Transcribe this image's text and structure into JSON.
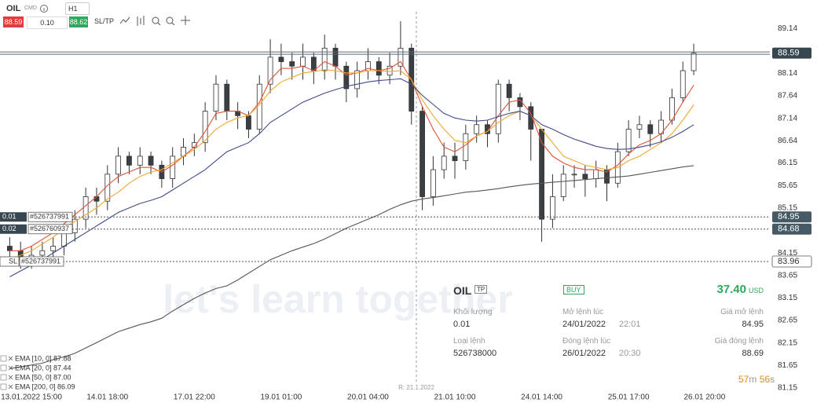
{
  "toolbar": {
    "symbol": "OIL",
    "market": "CMD",
    "timeframe": "H1",
    "bid": "88.59",
    "lot": "0.10",
    "ask": "88.62",
    "sltp": "SL/TP"
  },
  "chart_data": {
    "type": "candlestick",
    "categories": [
      null,
      null,
      "13.01.2022 15:00",
      null,
      null,
      null,
      null,
      null,
      null,
      "14.01 18:00",
      null,
      null,
      null,
      null,
      null,
      null,
      null,
      "17.01 22:00",
      null,
      null,
      null,
      null,
      null,
      null,
      null,
      "19.01 01:00",
      null,
      null,
      null,
      null,
      null,
      null,
      null,
      "20.01 04:00",
      null,
      null,
      null,
      null,
      null,
      null,
      null,
      "21.01 10:00",
      null,
      null,
      null,
      null,
      null,
      null,
      null,
      "24.01 14:00",
      null,
      null,
      null,
      null,
      null,
      null,
      null,
      "25.01 17:00",
      null,
      null,
      null,
      null,
      null,
      null,
      "26.01 20:00"
    ],
    "open": [
      84.3,
      84.2,
      84.0,
      84.1,
      84.2,
      84.3,
      84.6,
      84.9,
      85.4,
      85.3,
      85.9,
      86.3,
      86.1,
      86.3,
      86.1,
      85.8,
      86.3,
      86.5,
      86.6,
      87.3,
      87.9,
      87.3,
      87.2,
      86.9,
      87.9,
      88.5,
      88.4,
      88.3,
      88.5,
      88.2,
      88.7,
      88.3,
      87.8,
      88.2,
      88.4,
      88.1,
      88.3,
      88.7,
      87.3,
      85.4,
      86.0,
      86.3,
      86.2,
      86.8,
      87.0,
      86.8,
      87.9,
      87.6,
      87.4,
      86.9,
      84.9,
      85.4,
      85.9,
      85.9,
      85.8,
      86.0,
      85.7,
      86.4,
      86.9,
      87.0,
      86.8,
      87.1,
      87.6,
      88.2,
      null
    ],
    "high": [
      84.5,
      84.4,
      84.3,
      84.4,
      84.5,
      84.8,
      85.1,
      85.6,
      85.6,
      86.1,
      86.5,
      86.4,
      86.5,
      86.4,
      86.2,
      86.5,
      86.7,
      86.8,
      87.5,
      88.1,
      88.0,
      87.5,
      87.3,
      88.1,
      88.9,
      88.8,
      88.6,
      88.8,
      88.6,
      89.0,
      88.8,
      88.4,
      88.4,
      88.7,
      88.5,
      88.6,
      89.3,
      88.8,
      87.4,
      86.3,
      86.6,
      86.6,
      87.0,
      87.2,
      87.1,
      88.0,
      88.0,
      87.7,
      87.5,
      86.9,
      85.9,
      86.1,
      86.1,
      86.1,
      86.2,
      86.1,
      86.6,
      87.1,
      87.2,
      87.1,
      87.3,
      87.8,
      88.4,
      88.8,
      null
    ],
    "low": [
      83.9,
      83.8,
      83.8,
      83.9,
      84.0,
      84.1,
      84.4,
      84.7,
      85.0,
      85.1,
      85.7,
      85.9,
      85.9,
      85.9,
      85.6,
      85.6,
      86.1,
      86.3,
      86.4,
      87.1,
      87.1,
      86.9,
      86.7,
      86.8,
      87.7,
      88.1,
      88.0,
      88.0,
      87.9,
      88.0,
      88.0,
      87.5,
      87.6,
      88.0,
      87.9,
      87.9,
      88.1,
      87.0,
      85.1,
      85.2,
      85.8,
      85.8,
      86.0,
      86.6,
      86.5,
      86.6,
      87.3,
      87.1,
      86.2,
      84.4,
      84.7,
      85.3,
      85.6,
      85.4,
      85.6,
      85.3,
      85.6,
      86.3,
      86.7,
      86.5,
      86.6,
      87.0,
      87.5,
      88.1,
      null
    ],
    "close": [
      84.2,
      84.0,
      84.1,
      84.2,
      84.3,
      84.6,
      84.9,
      85.4,
      85.3,
      85.9,
      86.3,
      86.1,
      86.3,
      86.1,
      85.8,
      86.3,
      86.5,
      86.6,
      87.3,
      87.9,
      87.3,
      87.2,
      86.9,
      87.9,
      88.5,
      88.4,
      88.3,
      88.5,
      88.2,
      88.7,
      88.3,
      87.8,
      88.2,
      88.4,
      88.1,
      88.3,
      88.7,
      87.3,
      85.4,
      86.0,
      86.3,
      86.2,
      86.8,
      87.0,
      86.8,
      87.9,
      87.6,
      87.4,
      86.9,
      84.9,
      85.4,
      85.9,
      85.9,
      85.8,
      86.0,
      85.7,
      86.4,
      86.9,
      87.0,
      86.8,
      87.1,
      87.6,
      88.2,
      88.59,
      null
    ],
    "series": [
      {
        "name": "EMA [10, 0] 87.88",
        "color": "#e0533a",
        "values": [
          84.2,
          84.2,
          84.3,
          84.45,
          84.6,
          84.8,
          85.0,
          85.2,
          85.4,
          85.65,
          85.85,
          85.95,
          86.05,
          86.05,
          85.95,
          86.1,
          86.3,
          86.5,
          86.85,
          87.25,
          87.3,
          87.3,
          87.2,
          87.5,
          88.0,
          88.25,
          88.25,
          88.3,
          88.2,
          88.4,
          88.3,
          88.1,
          88.15,
          88.25,
          88.2,
          88.25,
          88.4,
          88.0,
          87.4,
          86.9,
          86.5,
          86.4,
          86.55,
          86.75,
          86.85,
          87.2,
          87.5,
          87.55,
          87.25,
          86.6,
          86.3,
          86.15,
          86.05,
          86.0,
          86.0,
          85.95,
          86.1,
          86.35,
          86.55,
          86.65,
          86.8,
          87.1,
          87.5,
          87.88,
          null
        ]
      },
      {
        "name": "EMA [20, 0] 87.44",
        "color": "#f0a830",
        "values": [
          84.0,
          84.1,
          84.2,
          84.35,
          84.5,
          84.7,
          84.85,
          85.0,
          85.15,
          85.35,
          85.5,
          85.7,
          85.85,
          85.95,
          86.0,
          86.15,
          86.3,
          86.45,
          86.65,
          86.9,
          87.05,
          87.15,
          87.2,
          87.45,
          87.75,
          87.95,
          88.05,
          88.15,
          88.18,
          88.22,
          88.2,
          88.15,
          88.15,
          88.2,
          88.2,
          88.18,
          88.2,
          88.0,
          87.55,
          87.2,
          86.9,
          86.65,
          86.6,
          86.75,
          86.85,
          87.05,
          87.2,
          87.3,
          87.2,
          86.9,
          86.6,
          86.3,
          86.2,
          86.1,
          86.05,
          86.0,
          86.05,
          86.2,
          86.3,
          86.45,
          86.6,
          86.8,
          87.1,
          87.44,
          null
        ]
      },
      {
        "name": "EMA [50, 0] 87.00",
        "color": "#3f4a8a",
        "values": [
          83.62,
          83.75,
          83.88,
          84.0,
          84.15,
          84.3,
          84.45,
          84.6,
          84.75,
          84.9,
          85.05,
          85.15,
          85.25,
          85.32,
          85.4,
          85.55,
          85.7,
          85.85,
          86.0,
          86.2,
          86.4,
          86.5,
          86.6,
          86.8,
          87.05,
          87.2,
          87.35,
          87.5,
          87.6,
          87.7,
          87.78,
          87.85,
          87.9,
          87.95,
          87.98,
          88.0,
          88.02,
          87.9,
          87.65,
          87.45,
          87.25,
          87.15,
          87.1,
          87.08,
          87.1,
          87.18,
          87.25,
          87.3,
          87.2,
          87.0,
          86.9,
          86.78,
          86.68,
          86.6,
          86.52,
          86.47,
          86.45,
          86.46,
          86.5,
          86.55,
          86.62,
          86.72,
          86.85,
          87.0,
          null
        ]
      },
      {
        "name": "EMA [200, 0] 86.09",
        "color": "#555555",
        "values": [
          81.58,
          81.62,
          81.66,
          81.7,
          81.78,
          81.84,
          81.92,
          82.04,
          82.16,
          82.28,
          82.4,
          82.48,
          82.56,
          82.62,
          82.7,
          82.86,
          83.0,
          83.14,
          83.26,
          83.36,
          83.42,
          83.55,
          83.7,
          83.85,
          84.0,
          84.1,
          84.2,
          84.28,
          84.36,
          84.46,
          84.58,
          84.7,
          84.8,
          84.9,
          85.0,
          85.12,
          85.22,
          85.3,
          85.35,
          85.38,
          85.42,
          85.46,
          85.5,
          85.52,
          85.55,
          85.58,
          85.62,
          85.65,
          85.68,
          85.7,
          85.72,
          85.74,
          85.76,
          85.78,
          85.8,
          85.82,
          85.84,
          85.86,
          85.9,
          85.94,
          85.98,
          86.02,
          86.06,
          86.09,
          null
        ]
      }
    ],
    "ylim": [
      80.75,
      89.77
    ],
    "yticks": [
      89.14,
      88.14,
      87.64,
      87.14,
      86.64,
      86.15,
      85.65,
      85.15,
      84.15,
      83.65,
      83.15,
      82.65,
      82.15,
      81.65,
      81.15
    ],
    "grid": false,
    "legend": "bottom-left",
    "hlines": [
      {
        "value": 88.59,
        "color": "#37474f"
      },
      {
        "value": 84.95,
        "color": "#455a64",
        "lots": 0.01,
        "order": "#526737991"
      },
      {
        "value": 84.68,
        "color": "#455a64",
        "lots": 0.02,
        "order": "#526760937"
      },
      {
        "value": 83.96,
        "color": "#ffffff",
        "tag": "SL",
        "order": "#526737991"
      }
    ],
    "crosshair_label": "R: 21.1.2022",
    "watermark": "let's learn together"
  },
  "card": {
    "symbol": "OIL",
    "tag": "TP",
    "side": "BUY",
    "profit": "37.40",
    "currency": "USD",
    "rows": [
      [
        [
          "Khối lượng",
          "0.01"
        ],
        [
          "Mở lệnh lúc",
          "24/01/2022",
          "22:01"
        ],
        [
          "Giá mở lệnh",
          "84.95"
        ]
      ],
      [
        [
          "Loại lệnh",
          "526738000"
        ],
        [
          "Đóng lệnh lúc",
          "26/01/2022",
          "20:30"
        ],
        [
          "Giá đóng lệnh",
          "88.69"
        ]
      ]
    ]
  },
  "countdown": {
    "minutes": "57",
    "m": "m",
    "seconds": "56",
    "s": "s"
  }
}
